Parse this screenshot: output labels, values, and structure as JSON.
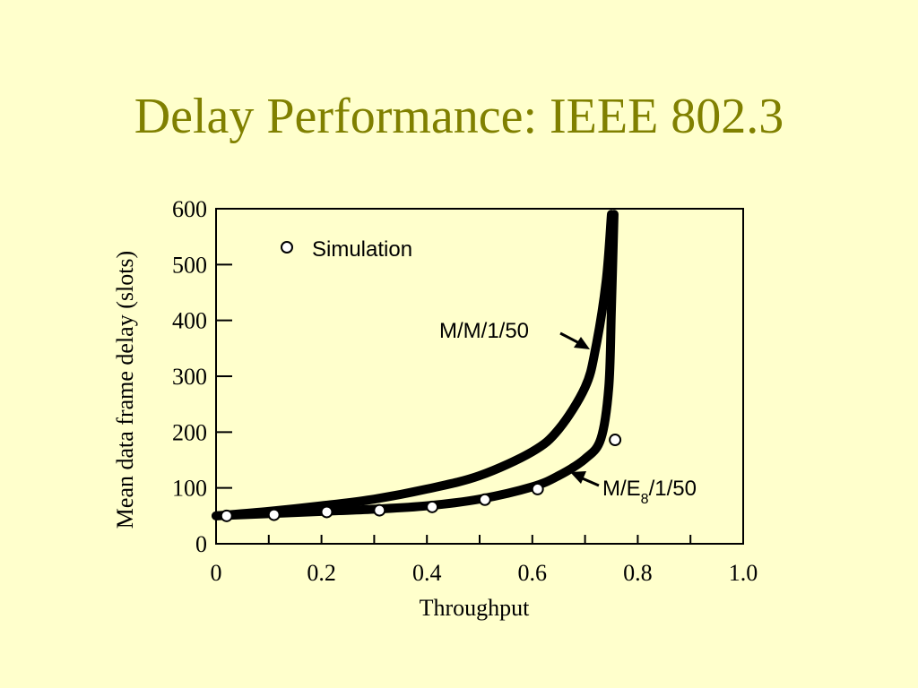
{
  "slide": {
    "title": "Delay Performance: IEEE 802.3"
  },
  "chart_data": {
    "type": "line",
    "title": "",
    "xlabel": "Throughput",
    "ylabel": "Mean data frame delay (slots)",
    "xlim": [
      0,
      1.0
    ],
    "ylim": [
      0,
      600
    ],
    "x_ticks": [
      "0",
      "0.2",
      "0.4",
      "0.6",
      "0.8",
      "1.0"
    ],
    "y_ticks": [
      "0",
      "100",
      "200",
      "300",
      "400",
      "500",
      "600"
    ],
    "grid": false,
    "series": [
      {
        "name": "M/M/1/50",
        "style": "thick-line",
        "x": [
          0.0,
          0.1,
          0.2,
          0.3,
          0.4,
          0.5,
          0.6,
          0.65,
          0.7,
          0.72,
          0.74,
          0.75
        ],
        "y": [
          50,
          58,
          68,
          80,
          98,
          122,
          165,
          205,
          280,
          350,
          470,
          590
        ]
      },
      {
        "name": "M/E8/1/50",
        "style": "thick-line",
        "x": [
          0.0,
          0.1,
          0.2,
          0.3,
          0.4,
          0.5,
          0.6,
          0.65,
          0.7,
          0.73,
          0.745,
          0.75,
          0.755
        ],
        "y": [
          50,
          54,
          58,
          62,
          68,
          80,
          102,
          122,
          152,
          188,
          280,
          420,
          590
        ]
      },
      {
        "name": "Simulation",
        "style": "markers",
        "x": [
          0.02,
          0.11,
          0.21,
          0.31,
          0.41,
          0.51,
          0.61,
          0.757
        ],
        "y": [
          50,
          52,
          57,
          60,
          66,
          79,
          98,
          186
        ]
      }
    ],
    "legend": {
      "label": "Simulation",
      "position": "top-left"
    },
    "annotations": {
      "mm1": "M/M/1/50",
      "me8_prefix": "M/E",
      "me8_sub": "8",
      "me8_suffix": "/1/50"
    }
  }
}
